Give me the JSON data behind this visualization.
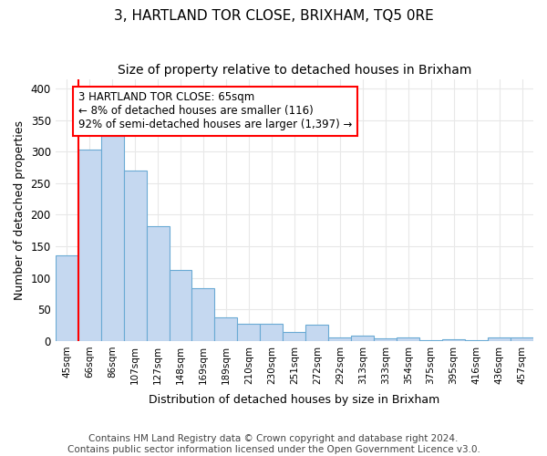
{
  "title": "3, HARTLAND TOR CLOSE, BRIXHAM, TQ5 0RE",
  "subtitle": "Size of property relative to detached houses in Brixham",
  "xlabel": "Distribution of detached houses by size in Brixham",
  "ylabel": "Number of detached properties",
  "categories": [
    "45sqm",
    "66sqm",
    "86sqm",
    "107sqm",
    "127sqm",
    "148sqm",
    "169sqm",
    "189sqm",
    "210sqm",
    "230sqm",
    "251sqm",
    "272sqm",
    "292sqm",
    "313sqm",
    "333sqm",
    "354sqm",
    "375sqm",
    "395sqm",
    "416sqm",
    "436sqm",
    "457sqm"
  ],
  "values": [
    135,
    303,
    325,
    270,
    182,
    112,
    84,
    38,
    28,
    27,
    15,
    26,
    5,
    9,
    4,
    5,
    1,
    3,
    1,
    5,
    5
  ],
  "bar_color": "#c5d8f0",
  "bar_edge_color": "#6aaad4",
  "annotation_text": "3 HARTLAND TOR CLOSE: 65sqm\n← 8% of detached houses are smaller (116)\n92% of semi-detached houses are larger (1,397) →",
  "annotation_box_color": "white",
  "annotation_box_edge_color": "red",
  "annotation_fontsize": 8.5,
  "ylim": [
    0,
    415
  ],
  "yticks": [
    0,
    50,
    100,
    150,
    200,
    250,
    300,
    350,
    400
  ],
  "title_fontsize": 11,
  "subtitle_fontsize": 10,
  "xlabel_fontsize": 9,
  "ylabel_fontsize": 9,
  "footer_text": "Contains HM Land Registry data © Crown copyright and database right 2024.\nContains public sector information licensed under the Open Government Licence v3.0.",
  "footer_fontsize": 7.5,
  "background_color": "#ffffff",
  "plot_background_color": "#ffffff",
  "grid_color": "#e8e8e8",
  "red_line_color": "red",
  "red_line_x": 0
}
